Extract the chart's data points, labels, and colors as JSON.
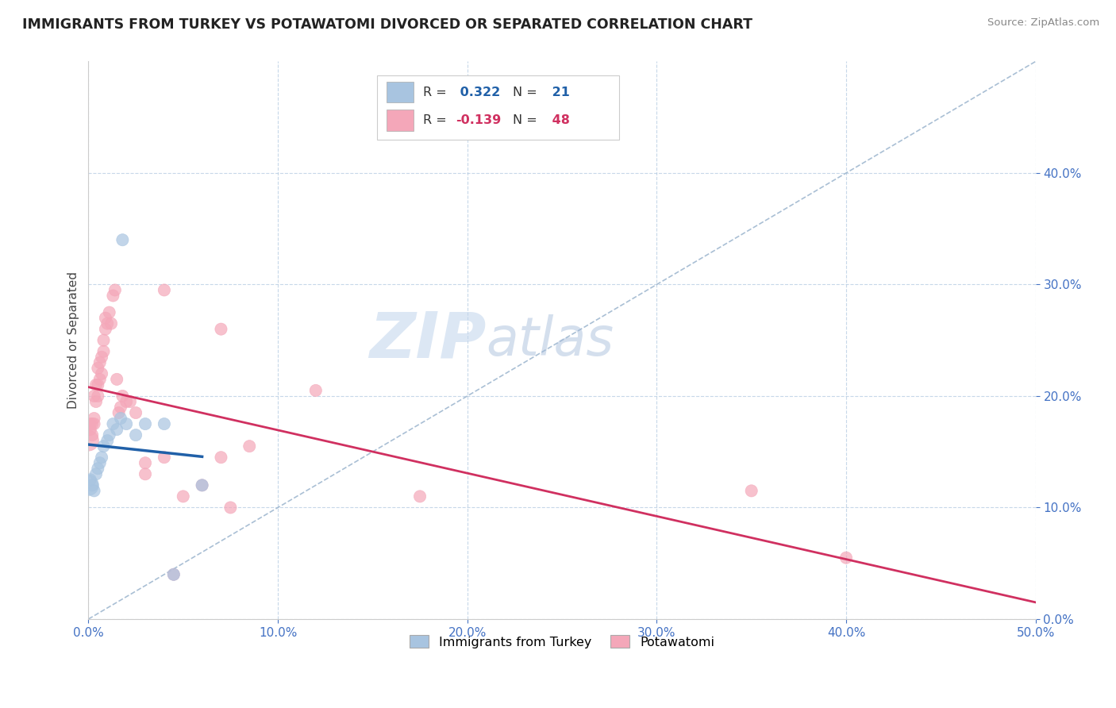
{
  "title": "IMMIGRANTS FROM TURKEY VS POTAWATOMI DIVORCED OR SEPARATED CORRELATION CHART",
  "source": "Source: ZipAtlas.com",
  "ylabel": "Divorced or Separated",
  "xlim": [
    0.0,
    0.5
  ],
  "ylim": [
    0.0,
    0.5
  ],
  "yticks": [
    0.0,
    0.1,
    0.2,
    0.3,
    0.4
  ],
  "xticks": [
    0.0,
    0.1,
    0.2,
    0.3,
    0.4,
    0.5
  ],
  "blue_R": 0.322,
  "blue_N": 21,
  "pink_R": -0.139,
  "pink_N": 48,
  "blue_scatter": [
    [
      0.0,
      0.12
    ],
    [
      0.001,
      0.125
    ],
    [
      0.002,
      0.12
    ],
    [
      0.003,
      0.115
    ],
    [
      0.004,
      0.13
    ],
    [
      0.005,
      0.135
    ],
    [
      0.006,
      0.14
    ],
    [
      0.007,
      0.145
    ],
    [
      0.008,
      0.155
    ],
    [
      0.01,
      0.16
    ],
    [
      0.011,
      0.165
    ],
    [
      0.013,
      0.175
    ],
    [
      0.015,
      0.17
    ],
    [
      0.017,
      0.18
    ],
    [
      0.02,
      0.175
    ],
    [
      0.025,
      0.165
    ],
    [
      0.03,
      0.175
    ],
    [
      0.04,
      0.175
    ],
    [
      0.018,
      0.34
    ],
    [
      0.06,
      0.12
    ],
    [
      0.045,
      0.04
    ]
  ],
  "pink_scatter": [
    [
      0.0,
      0.16
    ],
    [
      0.001,
      0.17
    ],
    [
      0.001,
      0.175
    ],
    [
      0.002,
      0.165
    ],
    [
      0.002,
      0.175
    ],
    [
      0.003,
      0.18
    ],
    [
      0.003,
      0.175
    ],
    [
      0.003,
      0.2
    ],
    [
      0.004,
      0.195
    ],
    [
      0.004,
      0.21
    ],
    [
      0.005,
      0.2
    ],
    [
      0.005,
      0.21
    ],
    [
      0.005,
      0.225
    ],
    [
      0.006,
      0.215
    ],
    [
      0.006,
      0.23
    ],
    [
      0.007,
      0.22
    ],
    [
      0.007,
      0.235
    ],
    [
      0.008,
      0.24
    ],
    [
      0.008,
      0.25
    ],
    [
      0.009,
      0.26
    ],
    [
      0.009,
      0.27
    ],
    [
      0.01,
      0.265
    ],
    [
      0.011,
      0.275
    ],
    [
      0.012,
      0.265
    ],
    [
      0.013,
      0.29
    ],
    [
      0.014,
      0.295
    ],
    [
      0.04,
      0.295
    ],
    [
      0.015,
      0.215
    ],
    [
      0.016,
      0.185
    ],
    [
      0.017,
      0.19
    ],
    [
      0.018,
      0.2
    ],
    [
      0.02,
      0.195
    ],
    [
      0.022,
      0.195
    ],
    [
      0.025,
      0.185
    ],
    [
      0.03,
      0.13
    ],
    [
      0.03,
      0.14
    ],
    [
      0.04,
      0.145
    ],
    [
      0.05,
      0.11
    ],
    [
      0.06,
      0.12
    ],
    [
      0.07,
      0.145
    ],
    [
      0.075,
      0.1
    ],
    [
      0.12,
      0.205
    ],
    [
      0.175,
      0.11
    ],
    [
      0.35,
      0.115
    ],
    [
      0.4,
      0.055
    ],
    [
      0.07,
      0.26
    ],
    [
      0.085,
      0.155
    ],
    [
      0.045,
      0.04
    ]
  ],
  "blue_color": "#a8c4e0",
  "pink_color": "#f4a7b9",
  "blue_line_color": "#2060a8",
  "pink_line_color": "#d03060",
  "diag_color": "#a0b8d0",
  "legend_label_blue": "Immigrants from Turkey",
  "legend_label_pink": "Potawatomi",
  "watermark_zip": "ZIP",
  "watermark_atlas": "atlas",
  "background_color": "#ffffff"
}
